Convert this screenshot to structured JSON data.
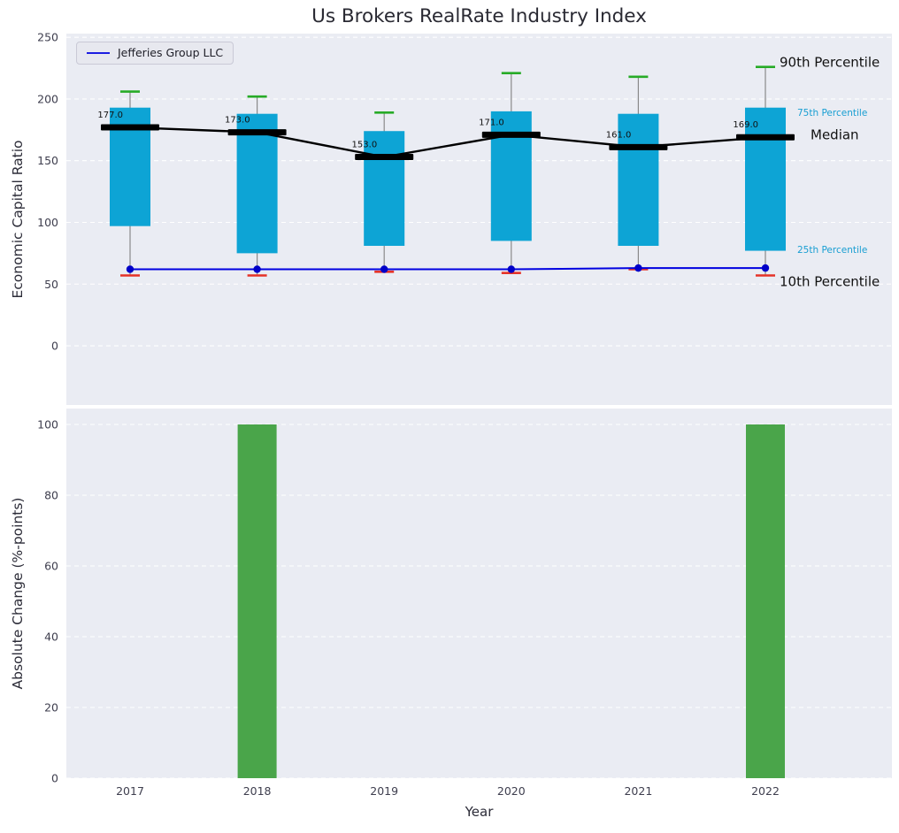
{
  "title": "Us Brokers RealRate Industry Index",
  "legend": {
    "label": "Jefferies Group LLC"
  },
  "chart_data": [
    {
      "type": "box-percentile",
      "title": "Us Brokers RealRate Industry Index",
      "ylabel": "Economic Capital Ratio",
      "categories": [
        "2017",
        "2018",
        "2019",
        "2020",
        "2021",
        "2022"
      ],
      "series": [
        {
          "name": "90th Percentile",
          "values": [
            206,
            202,
            189,
            221,
            218,
            226
          ]
        },
        {
          "name": "75th Percentile",
          "values": [
            193,
            188,
            174,
            190,
            188,
            193
          ]
        },
        {
          "name": "Median",
          "values": [
            177,
            173,
            153,
            171,
            161,
            169
          ]
        },
        {
          "name": "25th Percentile",
          "values": [
            97,
            75,
            81,
            85,
            81,
            77
          ]
        },
        {
          "name": "10th Percentile",
          "values": [
            57,
            57,
            60,
            59,
            62,
            57
          ]
        },
        {
          "name": "Jefferies Group LLC",
          "values": [
            62,
            62,
            62,
            62,
            63,
            63
          ]
        }
      ],
      "median_labels": [
        "177.0",
        "173.0",
        "153.0",
        "171.0",
        "161.0",
        "169.0"
      ],
      "yticks": [
        0,
        50,
        100,
        150,
        200,
        250
      ],
      "ylim": [
        -48,
        253
      ],
      "grid": "horizontal-dashed",
      "legend_position": "upper-left",
      "annotations": [
        {
          "text": "90th Percentile",
          "value": 230,
          "dx": 16,
          "color": "#111111",
          "size": 15
        },
        {
          "text": "75th Percentile",
          "value": 189,
          "dx": 36,
          "color": "#189ed2",
          "size": 10.5
        },
        {
          "text": "Median",
          "value": 171,
          "dx": 51,
          "color": "#111111",
          "size": 15
        },
        {
          "text": "25th Percentile",
          "value": 78,
          "dx": 36,
          "color": "#189ed2",
          "size": 10.5
        },
        {
          "text": "10th Percentile",
          "value": 52,
          "dx": 16,
          "color": "#111111",
          "size": 15
        }
      ],
      "colors": {
        "box": "#0da4d5",
        "cap_high": "#27ab27",
        "cap_low": "#e53228",
        "median": "#000000",
        "entity_line": "#0000e0",
        "entity_dot": "#0000c8",
        "whisker": "#8a8a8a"
      }
    },
    {
      "type": "bar",
      "ylabel": "Absolute Change (%-points)",
      "xlabel": "Year",
      "categories": [
        "2017",
        "2018",
        "2019",
        "2020",
        "2021",
        "2022"
      ],
      "values": [
        0,
        100,
        0,
        0,
        0,
        100
      ],
      "yticks": [
        0,
        20,
        40,
        60,
        80,
        100
      ],
      "ylim": [
        0,
        104.5
      ],
      "bar_color": "#4aa54a"
    }
  ]
}
